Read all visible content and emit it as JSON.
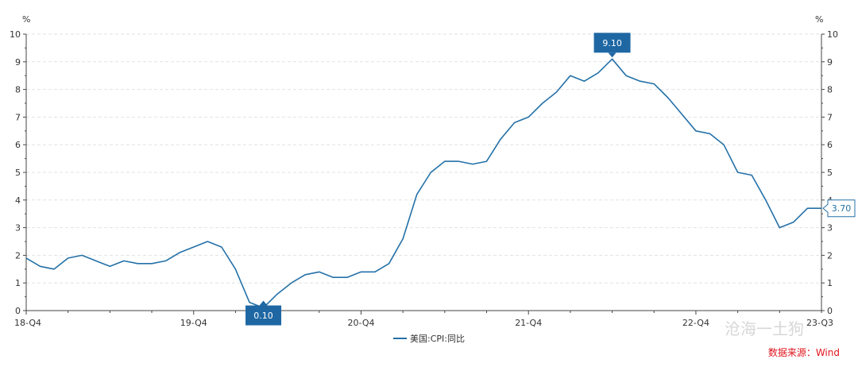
{
  "chart_data": {
    "type": "line",
    "unit_left": "%",
    "unit_right": "%",
    "ylim": [
      0,
      10
    ],
    "y_ticks": [
      0,
      1,
      2,
      3,
      4,
      5,
      6,
      7,
      8,
      9,
      10
    ],
    "grid": "horizontal-dashed",
    "x_labels": [
      {
        "index": 0,
        "label": "18-Q4"
      },
      {
        "index": 12,
        "label": "19-Q4"
      },
      {
        "index": 24,
        "label": "20-Q4"
      },
      {
        "index": 36,
        "label": "21-Q4"
      },
      {
        "index": 48,
        "label": "22-Q4"
      },
      {
        "index": 57,
        "label": "23-Q3"
      }
    ],
    "series": [
      {
        "name": "美国:CPI:同比",
        "color": "#2471a8",
        "values": [
          1.9,
          1.6,
          1.5,
          1.9,
          2.0,
          1.8,
          1.6,
          1.8,
          1.7,
          1.7,
          1.8,
          2.1,
          2.3,
          2.5,
          2.3,
          1.5,
          0.3,
          0.1,
          0.6,
          1.0,
          1.3,
          1.4,
          1.2,
          1.2,
          1.4,
          1.4,
          1.7,
          2.6,
          4.2,
          5.0,
          5.4,
          5.4,
          5.3,
          5.4,
          6.2,
          6.8,
          7.0,
          7.5,
          7.9,
          8.5,
          8.3,
          8.6,
          9.1,
          8.5,
          8.3,
          8.2,
          7.7,
          7.1,
          6.5,
          6.4,
          6.0,
          5.0,
          4.9,
          4.0,
          3.0,
          3.2,
          3.7,
          3.7
        ]
      }
    ],
    "annotations": [
      {
        "type": "min",
        "index": 17,
        "label": "0.10"
      },
      {
        "type": "max",
        "index": 42,
        "label": "9.10"
      },
      {
        "type": "last",
        "index": 57,
        "label": "3.70"
      }
    ],
    "legend": {
      "position": "bottom-center",
      "label": "美国:CPI:同比"
    }
  },
  "source": "数据来源：Wind",
  "watermark": "沧海一土狗"
}
